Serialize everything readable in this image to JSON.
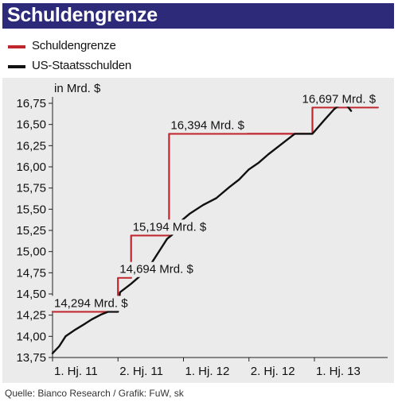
{
  "header": {
    "title": "Schuldengrenze"
  },
  "legend": [
    {
      "label": "Schuldengrenze",
      "color": "#c0262d"
    },
    {
      "label": "US-Staatsschulden",
      "color": "#111111"
    }
  ],
  "source": "Quelle: Bianco Research / Grafik: FuW, sk",
  "chart_data": {
    "type": "line",
    "unit_label": "in Mrd. $",
    "ylim": [
      13.75,
      16.75
    ],
    "yticks": [
      "13,75",
      "14,00",
      "14,25",
      "14,50",
      "14,75",
      "15,00",
      "15,25",
      "15,50",
      "15,75",
      "16,00",
      "16,25",
      "16,50",
      "16,75"
    ],
    "xlim": [
      0,
      5.07
    ],
    "xticks": [
      {
        "pos": 0.0,
        "label": "1. Hj. 11"
      },
      {
        "pos": 1.0,
        "label": "2. Hj. 11"
      },
      {
        "pos": 2.0,
        "label": "1. Hj. 12"
      },
      {
        "pos": 3.0,
        "label": "2. Hj. 12"
      },
      {
        "pos": 4.0,
        "label": "1. Hj. 13"
      }
    ],
    "grid": false,
    "series": [
      {
        "name": "Schuldengrenze",
        "color": "#c0262d",
        "step": true,
        "points": [
          [
            0,
            14.29
          ],
          [
            1.0,
            14.29
          ],
          [
            1.0,
            14.69
          ],
          [
            1.2,
            14.69
          ],
          [
            1.2,
            15.19
          ],
          [
            1.78,
            15.19
          ],
          [
            1.78,
            16.39
          ],
          [
            3.97,
            16.39
          ],
          [
            3.97,
            16.7
          ],
          [
            4.97,
            16.7
          ]
        ]
      },
      {
        "name": "US-Staatsschulden",
        "color": "#111111",
        "points": [
          [
            0.0,
            13.8
          ],
          [
            0.1,
            13.88
          ],
          [
            0.2,
            14.0
          ],
          [
            0.35,
            14.08
          ],
          [
            0.5,
            14.15
          ],
          [
            0.6,
            14.2
          ],
          [
            0.75,
            14.26
          ],
          [
            0.85,
            14.29
          ],
          [
            1.0,
            14.29
          ],
          [
            1.03,
            14.52
          ],
          [
            1.2,
            14.62
          ],
          [
            1.35,
            14.72
          ],
          [
            1.5,
            14.85
          ],
          [
            1.65,
            15.03
          ],
          [
            1.75,
            15.15
          ],
          [
            1.83,
            15.2
          ],
          [
            1.9,
            15.32
          ],
          [
            2.1,
            15.45
          ],
          [
            2.3,
            15.55
          ],
          [
            2.5,
            15.63
          ],
          [
            2.7,
            15.76
          ],
          [
            2.85,
            15.85
          ],
          [
            3.0,
            15.97
          ],
          [
            3.15,
            16.05
          ],
          [
            3.3,
            16.15
          ],
          [
            3.5,
            16.27
          ],
          [
            3.6,
            16.33
          ],
          [
            3.7,
            16.39
          ],
          [
            3.97,
            16.39
          ],
          [
            4.15,
            16.55
          ],
          [
            4.3,
            16.68
          ],
          [
            4.4,
            16.74
          ],
          [
            4.5,
            16.72
          ],
          [
            4.56,
            16.66
          ]
        ]
      }
    ],
    "annotations": [
      {
        "text": "14,294 Mrd. $",
        "x": 0.0,
        "y": 14.29
      },
      {
        "text": "14,694 Mrd. $",
        "x": 1.0,
        "y": 14.69
      },
      {
        "text": "15,194 Mrd. $",
        "x": 1.2,
        "y": 15.19
      },
      {
        "text": "16,394 Mrd. $",
        "x": 1.78,
        "y": 16.39
      },
      {
        "text": "16,697 Mrd. $",
        "x": 4.35,
        "y": 16.7
      }
    ]
  }
}
